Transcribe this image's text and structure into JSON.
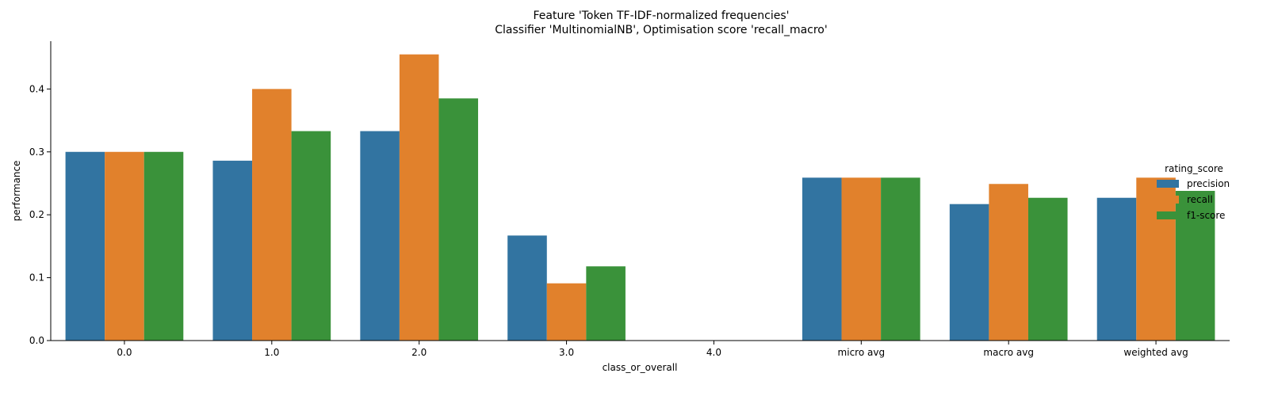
{
  "chart_data": {
    "type": "bar",
    "title_line1": "Feature 'Token TF-IDF-normalized frequencies'",
    "title_line2": "Classifier 'MultinomialNB', Optimisation score 'recall_macro'",
    "xlabel": "class_or_overall",
    "ylabel": "performance",
    "categories": [
      "0.0",
      "1.0",
      "2.0",
      "3.0",
      "4.0",
      "micro avg",
      "macro avg",
      "weighted avg"
    ],
    "series": [
      {
        "name": "precision",
        "color": "#3274a1",
        "values": [
          0.3,
          0.286,
          0.333,
          0.167,
          0.0,
          0.259,
          0.217,
          0.227
        ]
      },
      {
        "name": "recall",
        "color": "#e1812c",
        "values": [
          0.3,
          0.4,
          0.455,
          0.091,
          0.0,
          0.259,
          0.249,
          0.259
        ]
      },
      {
        "name": "f1-score",
        "color": "#3a923a",
        "values": [
          0.3,
          0.333,
          0.385,
          0.118,
          0.0,
          0.259,
          0.227,
          0.238
        ]
      }
    ],
    "ylim": [
      0,
      0.476
    ],
    "yticks": [
      "0.0",
      "0.1",
      "0.2",
      "0.3",
      "0.4"
    ],
    "legend": {
      "title": "rating_score",
      "placement": "right"
    },
    "grid": false
  }
}
